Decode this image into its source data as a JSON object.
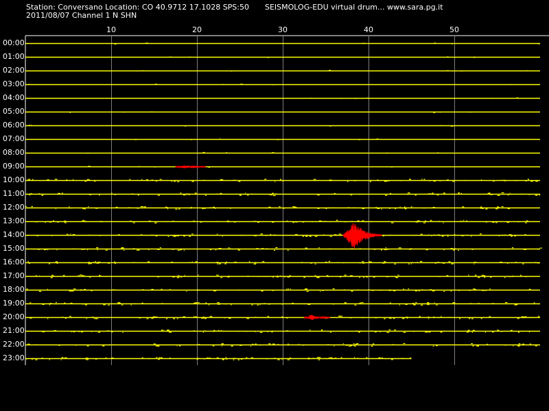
{
  "header": {
    "station_info": "Station: Conversano Location: CO 40.9712 17.1028 SPS:50",
    "credit": "SEISMOLOG-EDU virtual drum... www.sara.pg.it",
    "date_channel": "2011/08/07  Channel 1 N SHN"
  },
  "axis": {
    "unit_ticks": [
      "10",
      "20",
      "30",
      "40",
      "50"
    ],
    "tick_values": [
      10,
      20,
      30,
      40,
      50
    ],
    "range_minutes": [
      0,
      60
    ]
  },
  "drum": {
    "hour_labels": [
      "00:00",
      "01:00",
      "02:00",
      "03:00",
      "04:00",
      "05:00",
      "06:00",
      "07:00",
      "08:00",
      "09:00",
      "10:00",
      "11:00",
      "12:00",
      "13:00",
      "14:00",
      "15:00",
      "16:00",
      "17:00",
      "18:00",
      "19:00",
      "20:00",
      "21:00",
      "22:00",
      "23:00"
    ],
    "last_row_end_minute": 45,
    "trace_color": "#ffff00",
    "event_color": "#ff0000",
    "grid_color": "#7f7f7f",
    "events": [
      {
        "hour": 9,
        "start_min": 17.5,
        "end_min": 21,
        "amplitude": 0.25
      },
      {
        "hour": 14,
        "start_min": 37,
        "end_min": 41.5,
        "amplitude": 2.1
      },
      {
        "hour": 20,
        "start_min": 32.5,
        "end_min": 35.5,
        "amplitude": 0.4
      }
    ]
  }
}
